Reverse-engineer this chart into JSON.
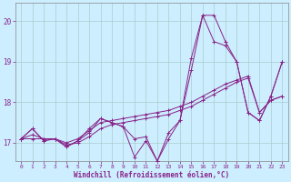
{
  "xlabel": "Windchill (Refroidissement éolien,°C)",
  "background_color": "#cceeff",
  "grid_color": "#aacccc",
  "line_color": "#882288",
  "xlim": [
    -0.5,
    23.5
  ],
  "ylim": [
    16.55,
    20.45
  ],
  "yticks": [
    17,
    18,
    19,
    20
  ],
  "xticks": [
    0,
    1,
    2,
    3,
    4,
    5,
    6,
    7,
    8,
    9,
    10,
    11,
    12,
    13,
    14,
    15,
    16,
    17,
    18,
    19,
    20,
    21,
    22,
    23
  ],
  "x": [
    0,
    1,
    2,
    3,
    4,
    5,
    6,
    7,
    8,
    9,
    10,
    11,
    12,
    13,
    14,
    15,
    16,
    17,
    18,
    19,
    20,
    21,
    22,
    23
  ],
  "series": [
    [
      17.1,
      17.35,
      17.05,
      17.1,
      16.9,
      17.05,
      17.25,
      17.6,
      17.5,
      17.4,
      16.65,
      17.05,
      16.55,
      17.25,
      17.55,
      19.1,
      20.15,
      20.15,
      19.5,
      19.0,
      17.75,
      17.55,
      18.15,
      19.0
    ],
    [
      17.1,
      17.35,
      17.05,
      17.1,
      16.9,
      17.05,
      17.35,
      17.6,
      17.5,
      17.4,
      17.1,
      17.15,
      16.55,
      17.1,
      17.55,
      18.8,
      20.15,
      19.5,
      19.4,
      19.0,
      17.75,
      17.55,
      18.15,
      19.0
    ],
    [
      17.1,
      17.2,
      17.1,
      17.1,
      17.0,
      17.1,
      17.3,
      17.5,
      17.55,
      17.6,
      17.65,
      17.7,
      17.75,
      17.8,
      17.9,
      18.0,
      18.15,
      18.3,
      18.45,
      18.55,
      18.65,
      17.75,
      18.05,
      18.15
    ],
    [
      17.1,
      17.1,
      17.1,
      17.1,
      16.95,
      17.0,
      17.15,
      17.35,
      17.45,
      17.5,
      17.55,
      17.6,
      17.65,
      17.7,
      17.8,
      17.9,
      18.05,
      18.2,
      18.35,
      18.5,
      18.6,
      17.75,
      18.05,
      18.15
    ]
  ]
}
